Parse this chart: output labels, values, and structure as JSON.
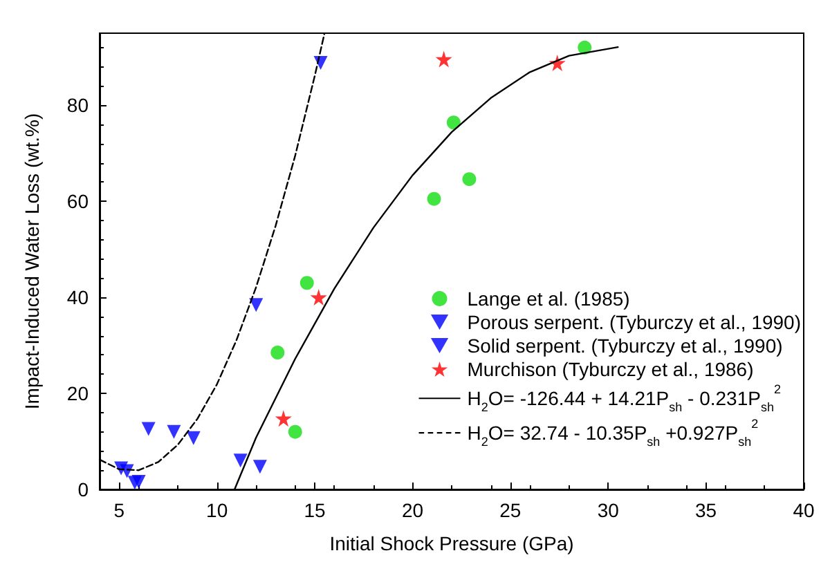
{
  "chart_data": {
    "type": "scatter",
    "xlabel": "Initial Shock Pressure (GPa)",
    "ylabel": "Impact-Induced Water Loss (wt.%)",
    "xlim": [
      4,
      40
    ],
    "xticks": [
      5,
      10,
      15,
      20,
      25,
      30,
      35,
      40
    ],
    "ylim": [
      0,
      95
    ],
    "yticks": [
      0,
      20,
      40,
      60,
      80
    ],
    "grid": false,
    "legend": "right",
    "series": [
      {
        "name": "Lange et al. (1985)",
        "type": "scatter",
        "marker": "circle",
        "color": "#11dd11",
        "x": [
          14.6,
          13.1,
          14.0,
          22.1,
          22.9,
          21.1,
          28.8
        ],
        "values": [
          43,
          28.5,
          12,
          76.4,
          64.6,
          60.5,
          92
        ]
      },
      {
        "name": "Porous serpent. (Tyburczy et al., 1990)",
        "type": "scatter",
        "marker": "triangle",
        "color": "#0000ff",
        "x": [
          15.3,
          12.0,
          6.5,
          7.8,
          8.8,
          5.1,
          5.4,
          5.8,
          6.0
        ],
        "values": [
          88.8,
          38.4,
          12.6,
          12,
          10.7,
          4.4,
          3.8,
          1.4,
          1.6
        ]
      },
      {
        "name": "Solid serpent. (Tyburczy et al., 1990)",
        "type": "scatter",
        "marker": "triangle",
        "color": "#0000ff",
        "x": [
          11.2,
          12.2
        ],
        "values": [
          6,
          4.7
        ]
      },
      {
        "name": "Murchison (Tyburczy et al., 1986)",
        "type": "scatter",
        "marker": "star",
        "color": "#ff0000",
        "x": [
          15.2,
          13.4,
          21.6,
          27.4
        ],
        "values": [
          40,
          14.8,
          89.6,
          88.8
        ]
      },
      {
        "name": "H$_{2}$O= -126.44 + 14.21P$_{sh}$ - 0.231P$_{sh}$$^{2}$",
        "type": "line",
        "marker": "none",
        "line_style": "solid",
        "color": "#000000",
        "x": [
          10.9,
          12,
          14,
          16,
          18,
          20,
          22,
          24,
          26,
          28,
          30.5
        ],
        "values": [
          0,
          10.8,
          27.2,
          41.8,
          54.5,
          65.4,
          74.4,
          81.5,
          86.9,
          90.3,
          92.1
        ]
      },
      {
        "name": "H$_{2}$O= 32.74 - 10.35P$_{sh}$ +0.927P$_{sh}$$^{2}$",
        "type": "line",
        "marker": "none",
        "line_style": "dashed",
        "color": "#000000",
        "x": [
          4,
          5,
          6,
          7,
          8,
          9,
          10,
          11,
          12,
          13,
          14,
          15,
          15.5
        ],
        "values": [
          6.2,
          4.2,
          4.0,
          5.7,
          9.3,
          14.7,
          21.9,
          31.1,
          42.1,
          54.9,
          69.5,
          86.1,
          95
        ]
      }
    ]
  }
}
